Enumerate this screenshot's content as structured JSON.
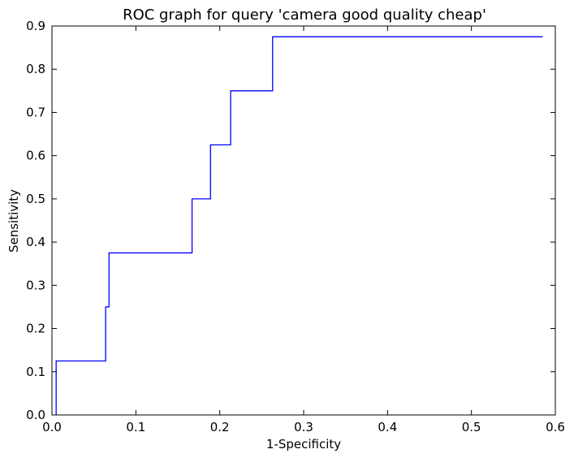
{
  "chart_data": {
    "type": "line",
    "title": "ROC graph for query 'camera good quality cheap'",
    "xlabel": "1-Specificity",
    "ylabel": "Sensitivity",
    "xlim": [
      0.0,
      0.6
    ],
    "ylim": [
      0.0,
      0.9
    ],
    "x_ticks": [
      "0.0",
      "0.1",
      "0.2",
      "0.3",
      "0.4",
      "0.5",
      "0.6"
    ],
    "y_ticks": [
      "0.0",
      "0.1",
      "0.2",
      "0.3",
      "0.4",
      "0.5",
      "0.6",
      "0.7",
      "0.8",
      "0.9"
    ],
    "grid": false,
    "legend": "none",
    "line_color": "#0000ff",
    "series": [
      {
        "x": [
          0.005,
          0.005,
          0.064,
          0.064,
          0.066,
          0.066,
          0.068,
          0.068,
          0.167,
          0.167,
          0.189,
          0.189,
          0.213,
          0.213,
          0.263,
          0.263,
          0.585
        ],
        "y": [
          0.0,
          0.125,
          0.125,
          0.25,
          0.25,
          0.25,
          0.25,
          0.375,
          0.375,
          0.5,
          0.5,
          0.625,
          0.625,
          0.75,
          0.75,
          0.875,
          0.875
        ]
      }
    ]
  }
}
